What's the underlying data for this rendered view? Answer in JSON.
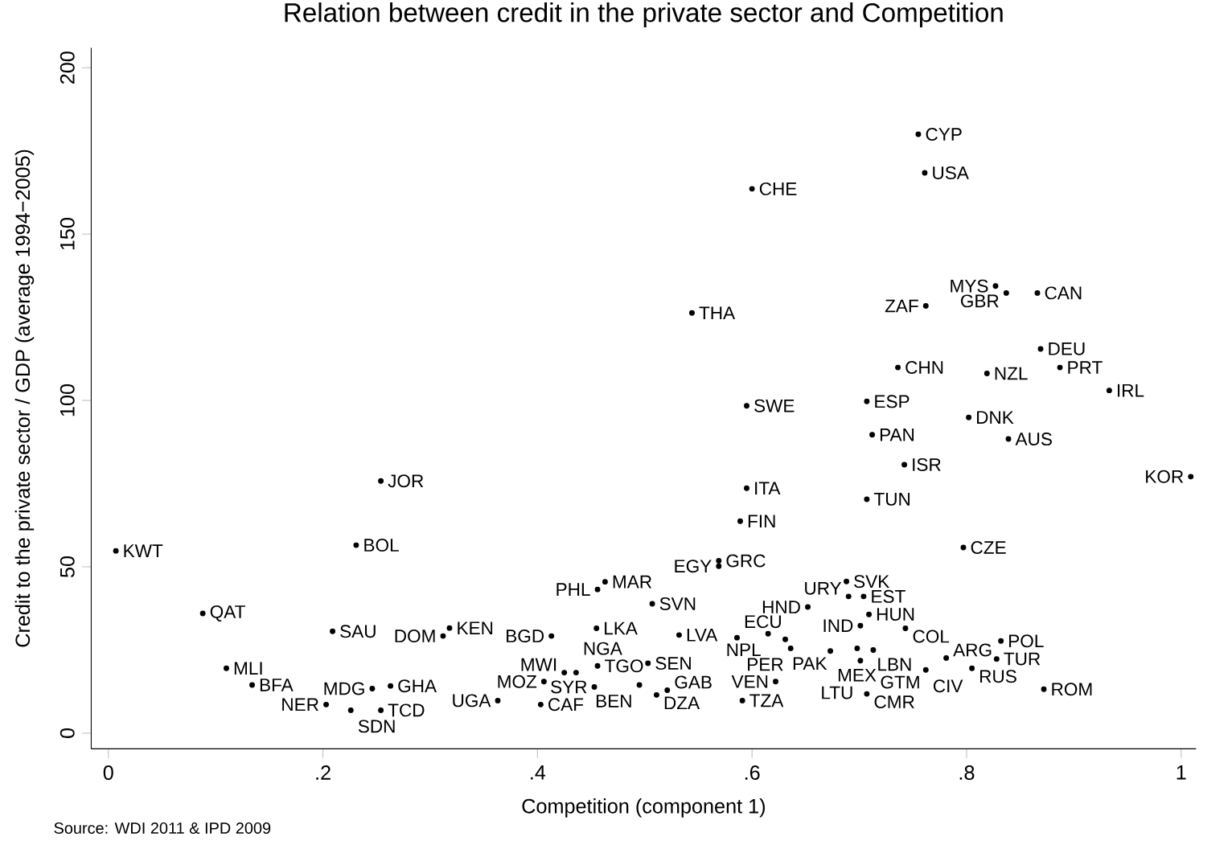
{
  "chart_data": {
    "type": "scatter",
    "title": "Relation between credit in the private sector and Competition",
    "xlabel": "Competition (component 1)",
    "ylabel": "Credit to the private sector / GDP (average 1994−2005)",
    "xlim": [
      -0.016,
      1.014
    ],
    "ylim": [
      -4.7,
      206
    ],
    "xticks": [
      0,
      {
        "value": 0.2,
        "label": ".2"
      },
      {
        "value": 0.4,
        "label": ".4"
      },
      {
        "value": 0.6,
        "label": ".6"
      },
      {
        "value": 0.8,
        "label": ".8"
      },
      1
    ],
    "yticks": [
      0,
      50,
      100,
      150,
      200
    ],
    "marker": "circle",
    "grid": false,
    "annotations": [
      "Source: WDI 2011 & IPD 2009"
    ],
    "series": [
      {
        "color": "#000000",
        "x": [
          0.755,
          0.761,
          0.6,
          0.827,
          0.837,
          0.866,
          0.762,
          0.544,
          0.869,
          0.887,
          0.736,
          0.819,
          0.933,
          0.595,
          0.707,
          0.802,
          0.712,
          0.839,
          0.742,
          1.009,
          0.595,
          0.707,
          0.254,
          0.589,
          0.797,
          0.569,
          0.569,
          0.688,
          0.69,
          0.704,
          0.652,
          0.709,
          0.507,
          0.701,
          0.743,
          0.455,
          0.532,
          0.586,
          0.615,
          0.631,
          0.636,
          0.673,
          0.698,
          0.713,
          0.701,
          0.832,
          0.781,
          0.828,
          0.805,
          0.762,
          0.872,
          0.707,
          0.622,
          0.591,
          0.503,
          0.495,
          0.511,
          0.521,
          0.007,
          0.231,
          0.088,
          0.209,
          0.318,
          0.312,
          0.413,
          0.463,
          0.456,
          0.11,
          0.134,
          0.203,
          0.226,
          0.254,
          0.246,
          0.263,
          0.363,
          0.403,
          0.406,
          0.425,
          0.436,
          0.456,
          0.453
        ],
        "values": [
          180,
          168.4,
          163.6,
          134.4,
          132.3,
          132.3,
          128.4,
          126.3,
          115.5,
          109.9,
          109.9,
          108.1,
          103,
          98.4,
          99.7,
          94.9,
          89.7,
          88.4,
          80.7,
          77.1,
          73.6,
          70.3,
          75.8,
          63.7,
          55.8,
          51.8,
          50.2,
          45.6,
          41.1,
          41.1,
          37.9,
          35.7,
          38.9,
          32.3,
          31.5,
          31.5,
          29.5,
          28.7,
          29.9,
          28.2,
          25.5,
          24.7,
          25.5,
          25.0,
          21.8,
          27.7,
          22.6,
          22.3,
          19.5,
          19.0,
          13.2,
          11.8,
          15.5,
          9.8,
          21.0,
          14.5,
          11.5,
          12.9,
          54.8,
          56.5,
          36.0,
          30.6,
          31.6,
          29.2,
          29.2,
          45.5,
          43.2,
          19.5,
          14.5,
          8.6,
          6.9,
          6.9,
          13.4,
          14.2,
          9.8,
          8.6,
          15.5,
          18.2,
          18.2,
          20.2,
          13.9
        ],
        "value_labels": [
          "CYP",
          "USA",
          "CHE",
          "MYS",
          "GBR",
          "CAN",
          "ZAF",
          "THA",
          "DEU",
          "PRT",
          "CHN",
          "NZL",
          "IRL",
          "SWE",
          "ESP",
          "DNK",
          "PAN",
          "AUS",
          "ISR",
          "KOR",
          "ITA",
          "TUN",
          "JOR",
          "FIN",
          "CZE",
          "GRC",
          "EGY",
          "SVK",
          "URY",
          "EST",
          "HND",
          "HUN",
          "SVN",
          "IND",
          "COL",
          "LKA",
          "LVA",
          "ECU",
          "NPL",
          "PAK",
          "PER",
          "MEX",
          "LBN",
          "GTM",
          "LTU",
          "POL",
          "ARG",
          "TUR",
          "RUS",
          "CIV",
          "ROM",
          "CMR",
          "VEN",
          "TZA",
          "SEN",
          "BEN",
          "DZA",
          "GAB",
          "KWT",
          "BOL",
          "QAT",
          "SAU",
          "KEN",
          "DOM",
          "BGD",
          "MAR",
          "PHL",
          "MLI",
          "BFA",
          "NER",
          "SDN",
          "TCD",
          "MDG",
          "GHA",
          "UGA",
          "CAF",
          "MOZ",
          "MWI",
          "NGA",
          "TGO",
          "SYR"
        ]
      }
    ]
  }
}
